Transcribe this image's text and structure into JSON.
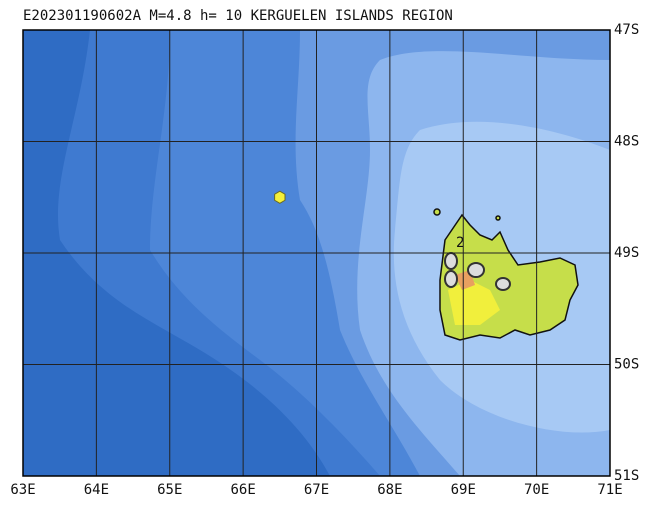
{
  "map": {
    "title": "E202301190602A  M=4.8  h=  10  KERGUELEN ISLANDS REGION",
    "lonlim": [
      63,
      71
    ],
    "latlim": [
      47,
      51
    ],
    "lonticks": [
      {
        "value": 63,
        "label": "63E"
      },
      {
        "value": 64,
        "label": "64E"
      },
      {
        "value": 65,
        "label": "65E"
      },
      {
        "value": 66,
        "label": "66E"
      },
      {
        "value": 67,
        "label": "67E"
      },
      {
        "value": 68,
        "label": "68E"
      },
      {
        "value": 69,
        "label": "69E"
      },
      {
        "value": 70,
        "label": "70E"
      },
      {
        "value": 71,
        "label": "71E"
      }
    ],
    "latticks": [
      {
        "value": 47,
        "label": "47S"
      },
      {
        "value": 48,
        "label": "48S"
      },
      {
        "value": 49,
        "label": "49S"
      },
      {
        "value": 50,
        "label": "50S"
      },
      {
        "value": 51,
        "label": "51S"
      }
    ],
    "grid": true,
    "epicenter": {
      "lon": 66.5,
      "lat": 48.5,
      "color": "#f4f03a"
    },
    "contour_label": "2"
  }
}
